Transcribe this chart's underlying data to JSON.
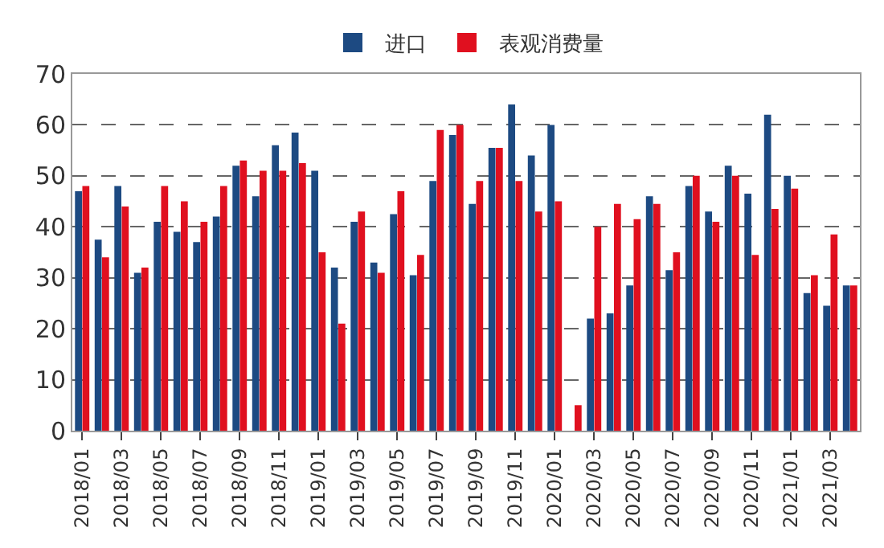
{
  "chart_data": {
    "type": "bar",
    "categories": [
      "2018/01",
      null,
      "2018/03",
      null,
      "2018/05",
      null,
      "2018/07",
      null,
      "2018/09",
      null,
      "2018/11",
      null,
      "2019/01",
      null,
      "2019/03",
      null,
      "2019/05",
      null,
      "2019/07",
      null,
      "2019/09",
      null,
      "2019/11",
      null,
      "2020/01",
      null,
      "2020/03",
      null,
      "2020/05",
      null,
      "2020/07",
      null,
      "2020/09",
      null,
      "2020/11",
      null,
      "2021/01",
      null,
      "2021/03",
      null
    ],
    "series": [
      {
        "name": "进口",
        "color": "#1d4a82",
        "values": [
          47,
          37.5,
          48,
          31,
          41,
          39,
          37,
          42,
          52,
          46,
          56,
          58.5,
          51,
          32,
          41,
          33,
          42.5,
          30.5,
          49,
          58,
          44.5,
          55.5,
          64,
          54,
          60,
          null,
          22,
          23,
          28.5,
          46,
          31.5,
          48,
          43,
          52,
          46.5,
          62,
          50,
          27,
          24.5,
          28.5
        ]
      },
      {
        "name": "表观消费量",
        "color": "#e0101f",
        "values": [
          48,
          34,
          44,
          32,
          48,
          45,
          41,
          48,
          53,
          51,
          51,
          52.5,
          35,
          21,
          43,
          31,
          47,
          34.5,
          59,
          60,
          49,
          55.5,
          49,
          43,
          45,
          5,
          40,
          44.5,
          41.5,
          44.5,
          35,
          50,
          41,
          50,
          34.5,
          43.5,
          47.5,
          30.5,
          38.5,
          28.5
        ]
      }
    ],
    "ylim": [
      0,
      70
    ],
    "yticks": [
      0,
      10,
      20,
      30,
      40,
      50,
      60,
      70
    ],
    "grid": "y",
    "legend": "top"
  }
}
